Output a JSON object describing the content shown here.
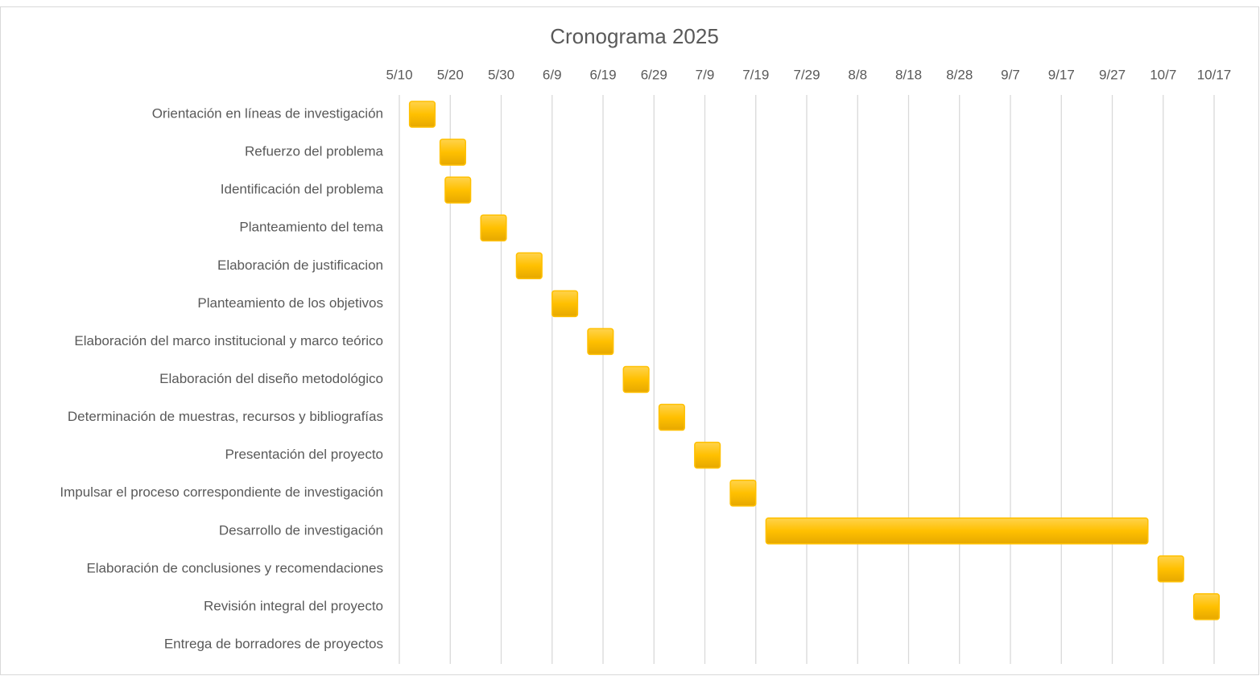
{
  "chart_data": {
    "type": "gantt",
    "title": "Cronograma 2025",
    "categories": [
      "Orientación en líneas de investigación",
      "Refuerzo del problema",
      "Identificación del problema",
      "Planteamiento del tema",
      "Elaboración de justificacion",
      "Planteamiento de los objetivos",
      "Elaboración del marco institucional y marco teórico",
      "Elaboración del diseño metodológico",
      "Determinación de muestras, recursos y bibliografías",
      "Presentación del proyecto",
      "Impulsar el proceso correspondiente de investigación",
      "Desarrollo de investigación",
      "Elaboración de conclusiones y recomendaciones",
      "Revisión integral del proyecto",
      "Entrega de borradores de proyectos"
    ],
    "start": [
      132,
      138,
      139,
      146,
      153,
      160,
      167,
      174,
      181,
      188,
      195,
      202,
      279,
      286,
      null
    ],
    "end": [
      137,
      143,
      144,
      151,
      158,
      165,
      172,
      179,
      186,
      193,
      200,
      277,
      284,
      291,
      null
    ],
    "color": "#ffc000",
    "xlim": [
      130,
      292
    ],
    "xticks": [
      {
        "value": 130,
        "label": "5/10"
      },
      {
        "value": 140,
        "label": "5/20"
      },
      {
        "value": 150,
        "label": "5/30"
      },
      {
        "value": 160,
        "label": "6/9"
      },
      {
        "value": 170,
        "label": "6/19"
      },
      {
        "value": 180,
        "label": "6/29"
      },
      {
        "value": 190,
        "label": "7/9"
      },
      {
        "value": 200,
        "label": "7/19"
      },
      {
        "value": 210,
        "label": "7/29"
      },
      {
        "value": 220,
        "label": "8/8"
      },
      {
        "value": 230,
        "label": "8/18"
      },
      {
        "value": 240,
        "label": "8/28"
      },
      {
        "value": 250,
        "label": "9/7"
      },
      {
        "value": 260,
        "label": "9/17"
      },
      {
        "value": 270,
        "label": "9/27"
      },
      {
        "value": 280,
        "label": "10/7"
      },
      {
        "value": 290,
        "label": "10/17"
      }
    ],
    "grid": true
  }
}
